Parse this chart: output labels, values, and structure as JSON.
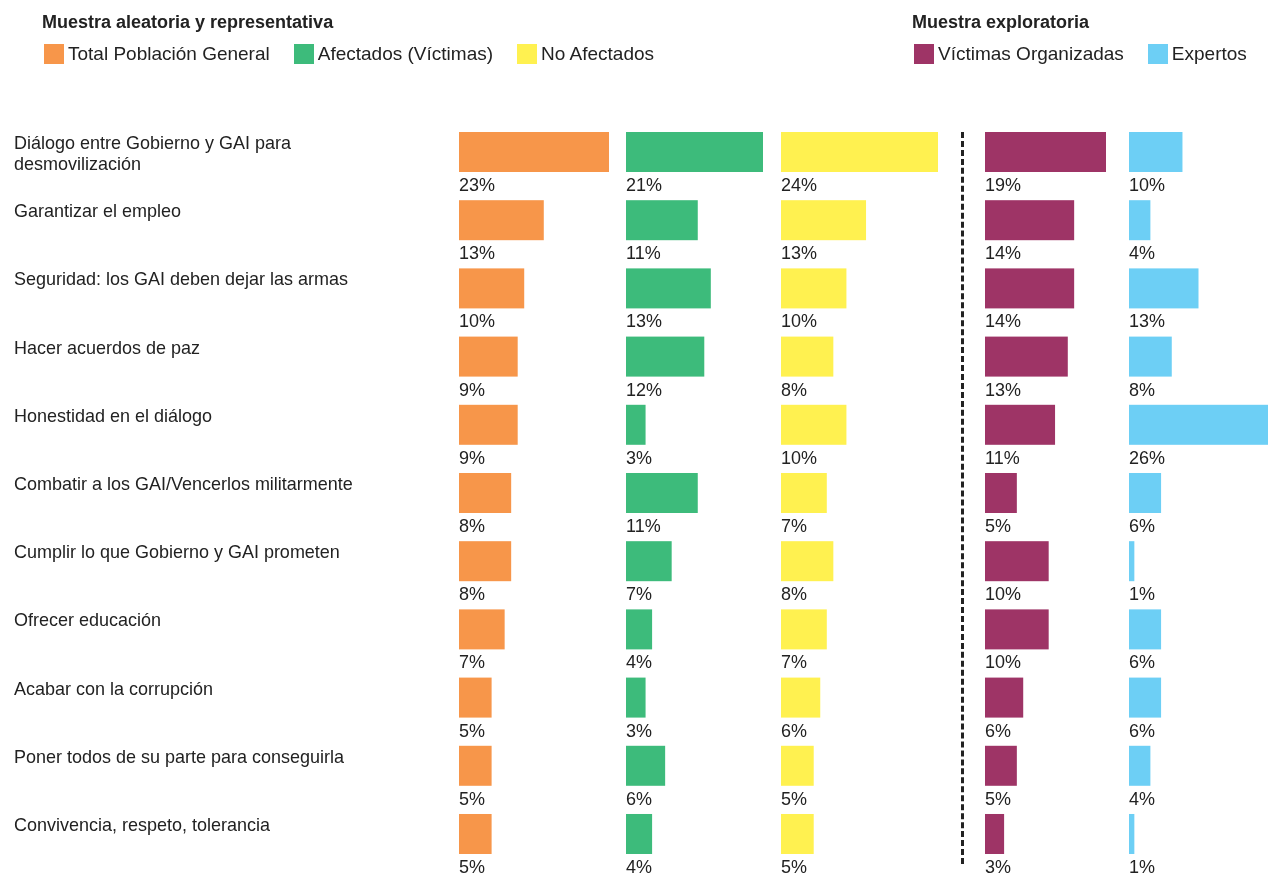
{
  "chart_data": [
    {
      "type": "bar",
      "orientation": "horizontal",
      "legend": "top",
      "legend_title": "Muestra aleatoria y representativa",
      "tick_labels": "y",
      "categories": [
        "Diálogo entre Gobierno y GAI para desmovilización",
        "Garantizar el empleo",
        "Seguridad: los GAI deben dejar las armas",
        "Hacer acuerdos de paz",
        "Honestidad en el diálogo",
        "Combatir a los GAI/Vencerlos militarmente",
        "Cumplir lo que Gobierno y GAI prometen",
        "Ofrecer educación",
        "Acabar con la corrupción",
        "Poner todos de su parte para conseguirla",
        "Convivencia, respeto, tolerancia"
      ],
      "series": [
        {
          "name": "Total Población General",
          "color": "#f7964a",
          "values": [
            23,
            13,
            10,
            9,
            9,
            8,
            8,
            7,
            5,
            5,
            5
          ],
          "value_labels": [
            "23%",
            "13%",
            "10%",
            "9%",
            "9%",
            "8%",
            "8%",
            "7%",
            "5%",
            "5%",
            "5%"
          ]
        }
      ]
    },
    {
      "type": "bar",
      "orientation": "horizontal",
      "legend": "top",
      "series": [
        {
          "name": "Afectados (Víctimas)",
          "color": "#3dbb7b",
          "values": [
            21,
            11,
            13,
            12,
            3,
            11,
            7,
            4,
            3,
            6,
            4
          ],
          "value_labels": [
            "21%",
            "11%",
            "13%",
            "12%",
            "3%",
            "11%",
            "7%",
            "4%",
            "3%",
            "6%",
            "4%"
          ]
        }
      ]
    },
    {
      "type": "bar",
      "orientation": "horizontal",
      "legend": "top",
      "series": [
        {
          "name": "No Afectados",
          "color": "#fff150",
          "values": [
            24,
            13,
            10,
            8,
            10,
            7,
            8,
            7,
            6,
            5,
            5
          ],
          "value_labels": [
            "24%",
            "13%",
            "10%",
            "8%",
            "10%",
            "7%",
            "8%",
            "7%",
            "6%",
            "5%",
            "5%"
          ]
        }
      ]
    },
    {
      "type": "bar",
      "orientation": "horizontal",
      "legend": "top",
      "legend_title": "Muestra exploratoria",
      "series": [
        {
          "name": "Víctimas Organizadas",
          "color": "#9e3466",
          "values": [
            19,
            14,
            14,
            13,
            11,
            5,
            10,
            10,
            6,
            5,
            3
          ],
          "value_labels": [
            "19%",
            "14%",
            "14%",
            "13%",
            "11%",
            "5%",
            "10%",
            "10%",
            "6%",
            "5%",
            "3%"
          ]
        }
      ]
    },
    {
      "type": "bar",
      "orientation": "horizontal",
      "legend": "top",
      "series": [
        {
          "name": "Expertos",
          "color": "#6dcff5",
          "values": [
            10,
            4,
            13,
            8,
            26,
            6,
            1,
            6,
            6,
            4,
            1
          ],
          "value_labels": [
            "10%",
            "4%",
            "13%",
            "8%",
            "26%",
            "6%",
            "1%",
            "6%",
            "6%",
            "4%",
            "1%"
          ]
        }
      ]
    }
  ]
}
